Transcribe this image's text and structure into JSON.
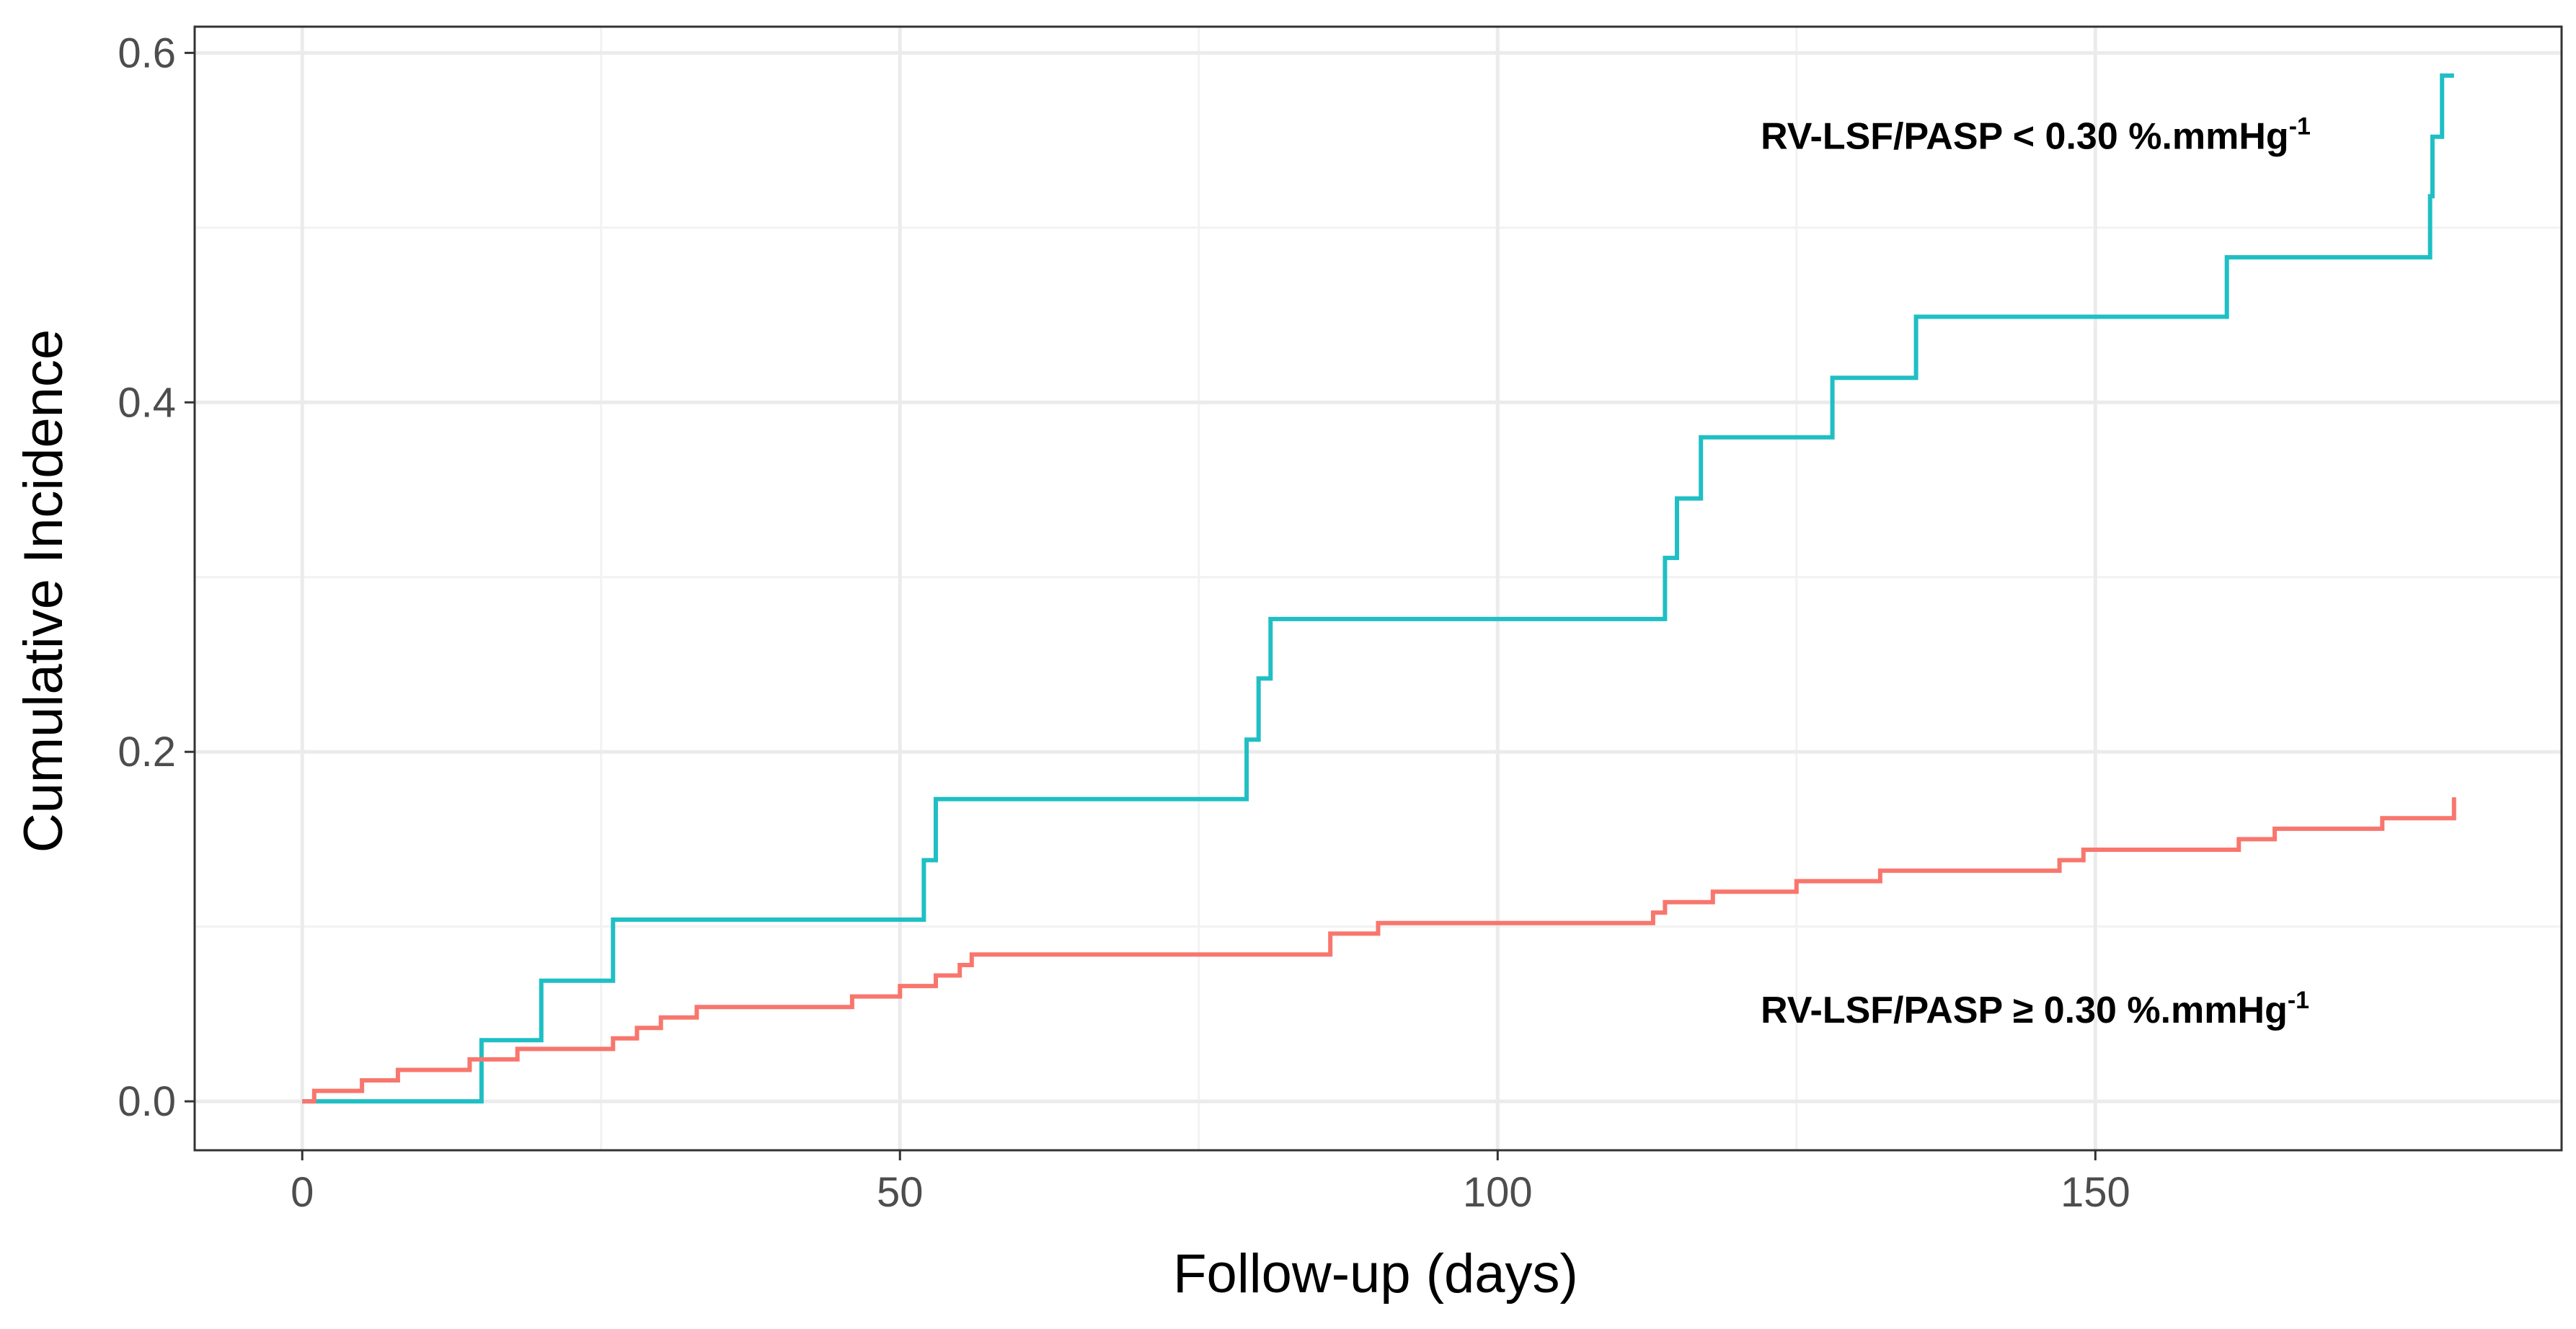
{
  "chart_data": {
    "type": "line",
    "step": true,
    "xlabel": "Follow-up (days)",
    "ylabel": "Cumulative Incidence",
    "xlim": [
      -9,
      189
    ],
    "ylim": [
      -0.028,
      0.615
    ],
    "x_ticks": [
      0,
      50,
      100,
      150
    ],
    "x_tick_labels": [
      "0",
      "50",
      "100",
      "150"
    ],
    "y_ticks": [
      0.0,
      0.2,
      0.4,
      0.6
    ],
    "y_tick_labels": [
      "0.0",
      "0.2",
      "0.4",
      "0.6"
    ],
    "grid": true,
    "colors": {
      "low_ratio": "#1fbfc4",
      "high_ratio": "#f8766d"
    },
    "annotations": [
      {
        "id": "low",
        "text": "RV-LSF/PASP < 0.30 %.mmHg",
        "superscript": "-1",
        "x": 122,
        "y": 0.545
      },
      {
        "id": "high",
        "text": "RV-LSF/PASP ≥ 0.30 %.mmHg",
        "superscript": "-1",
        "x": 122,
        "y": 0.045
      }
    ],
    "series": [
      {
        "id": "low_ratio",
        "color": "#1fbfc4",
        "points": [
          [
            0,
            0.0
          ],
          [
            15,
            0.0
          ],
          [
            15,
            0.035
          ],
          [
            20,
            0.035
          ],
          [
            20,
            0.069
          ],
          [
            26,
            0.069
          ],
          [
            26,
            0.104
          ],
          [
            52,
            0.104
          ],
          [
            52,
            0.138
          ],
          [
            53,
            0.138
          ],
          [
            53,
            0.173
          ],
          [
            79,
            0.173
          ],
          [
            79,
            0.207
          ],
          [
            80,
            0.207
          ],
          [
            80,
            0.242
          ],
          [
            81,
            0.242
          ],
          [
            81,
            0.276
          ],
          [
            114,
            0.276
          ],
          [
            114,
            0.311
          ],
          [
            115,
            0.311
          ],
          [
            115,
            0.345
          ],
          [
            117,
            0.345
          ],
          [
            117,
            0.38
          ],
          [
            128,
            0.38
          ],
          [
            128,
            0.414
          ],
          [
            135,
            0.414
          ],
          [
            135,
            0.449
          ],
          [
            161,
            0.449
          ],
          [
            161,
            0.483
          ],
          [
            178,
            0.483
          ],
          [
            178,
            0.518
          ],
          [
            178.2,
            0.518
          ],
          [
            178.2,
            0.552
          ],
          [
            179,
            0.552
          ],
          [
            179,
            0.587
          ],
          [
            180,
            0.587
          ]
        ]
      },
      {
        "id": "high_ratio",
        "color": "#f8766d",
        "points": [
          [
            0,
            0.0
          ],
          [
            1,
            0.0
          ],
          [
            1,
            0.006
          ],
          [
            5,
            0.006
          ],
          [
            5,
            0.012
          ],
          [
            8,
            0.012
          ],
          [
            8,
            0.018
          ],
          [
            14,
            0.018
          ],
          [
            14,
            0.024
          ],
          [
            18,
            0.024
          ],
          [
            18,
            0.03
          ],
          [
            26,
            0.03
          ],
          [
            26,
            0.036
          ],
          [
            28,
            0.036
          ],
          [
            28,
            0.042
          ],
          [
            30,
            0.042
          ],
          [
            30,
            0.048
          ],
          [
            33,
            0.048
          ],
          [
            33,
            0.054
          ],
          [
            46,
            0.054
          ],
          [
            46,
            0.06
          ],
          [
            50,
            0.06
          ],
          [
            50,
            0.066
          ],
          [
            53,
            0.066
          ],
          [
            53,
            0.072
          ],
          [
            55,
            0.072
          ],
          [
            55,
            0.078
          ],
          [
            56,
            0.078
          ],
          [
            56,
            0.084
          ],
          [
            86,
            0.084
          ],
          [
            86,
            0.096
          ],
          [
            90,
            0.096
          ],
          [
            90,
            0.102
          ],
          [
            113,
            0.102
          ],
          [
            113,
            0.108
          ],
          [
            114,
            0.108
          ],
          [
            114,
            0.114
          ],
          [
            118,
            0.114
          ],
          [
            118,
            0.12
          ],
          [
            125,
            0.12
          ],
          [
            125,
            0.126
          ],
          [
            132,
            0.126
          ],
          [
            132,
            0.132
          ],
          [
            147,
            0.132
          ],
          [
            147,
            0.138
          ],
          [
            149,
            0.138
          ],
          [
            149,
            0.144
          ],
          [
            162,
            0.144
          ],
          [
            162,
            0.15
          ],
          [
            165,
            0.15
          ],
          [
            165,
            0.156
          ],
          [
            174,
            0.156
          ],
          [
            174,
            0.162
          ],
          [
            180,
            0.162
          ],
          [
            180,
            0.174
          ]
        ]
      }
    ]
  }
}
